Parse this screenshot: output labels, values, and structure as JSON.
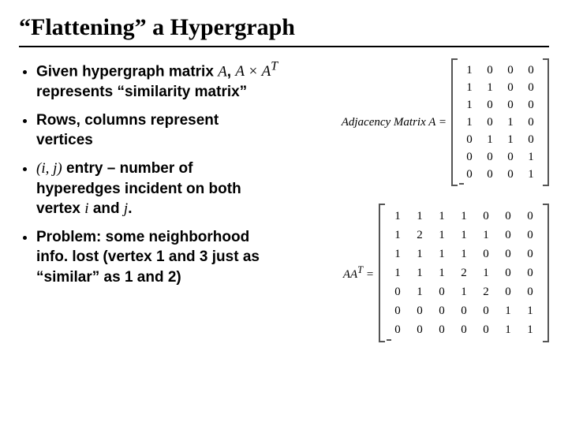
{
  "title": "“Flattening” a Hypergraph",
  "bullets": {
    "b1_pre": "Given hypergraph matrix ",
    "b1_A": "A",
    "b1_mid1": ", ",
    "b1_AAT": "A × A",
    "b1_T": "T",
    "b1_post": " represents “similarity matrix”",
    "b2": "Rows, columns represent vertices",
    "b3_ij": "(i, j)",
    "b3_mid": " entry – number of hyperedges incident on both vertex ",
    "b3_i": "i",
    "b3_and": " and ",
    "b3_j": "j",
    "b3_dot": ".",
    "b4": "Problem: some neighborhood info. lost (vertex 1 and 3 just as “similar” as 1 and 2)"
  },
  "matrixA": {
    "label": "Adjacency Matrix A =",
    "rows": [
      [
        "1",
        "0",
        "0",
        "0"
      ],
      [
        "1",
        "1",
        "0",
        "0"
      ],
      [
        "1",
        "0",
        "0",
        "0"
      ],
      [
        "1",
        "0",
        "1",
        "0"
      ],
      [
        "0",
        "1",
        "1",
        "0"
      ],
      [
        "0",
        "0",
        "0",
        "1"
      ],
      [
        "0",
        "0",
        "0",
        "1"
      ]
    ]
  },
  "matrixAAT": {
    "label_pre": "AA",
    "label_T": "T",
    "label_post": " =",
    "rows": [
      [
        "1",
        "1",
        "1",
        "1",
        "0",
        "0",
        "0"
      ],
      [
        "1",
        "2",
        "1",
        "1",
        "1",
        "0",
        "0"
      ],
      [
        "1",
        "1",
        "1",
        "1",
        "0",
        "0",
        "0"
      ],
      [
        "1",
        "1",
        "1",
        "2",
        "1",
        "0",
        "0"
      ],
      [
        "0",
        "1",
        "0",
        "1",
        "2",
        "0",
        "0"
      ],
      [
        "0",
        "0",
        "0",
        "0",
        "0",
        "1",
        "1"
      ],
      [
        "0",
        "0",
        "0",
        "0",
        "0",
        "1",
        "1"
      ]
    ]
  },
  "colors": {
    "text": "#000000",
    "bracket": "#555555",
    "background": "#ffffff"
  }
}
